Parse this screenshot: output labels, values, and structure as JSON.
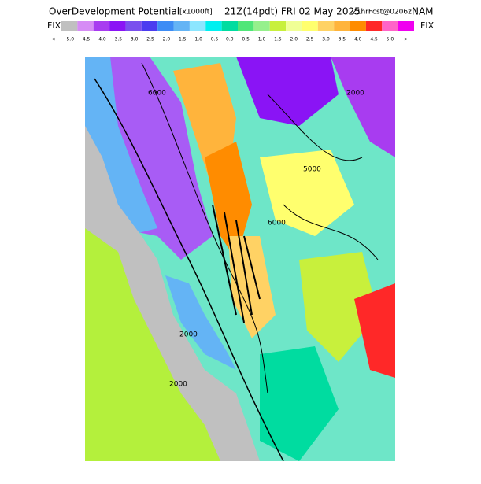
{
  "header": {
    "title": "OverDevelopment Potential",
    "units": "[x1000ft]",
    "valid": "21Z(14pdt) FRI 02 May 2025",
    "forecast": "21hrFcst@0206z",
    "model": "NAM"
  },
  "colorbar": {
    "left_tag": "FIX",
    "right_tag": "FIX",
    "labels": [
      "<",
      "-5.0",
      "-4.5",
      "-4.0",
      "-3.5",
      "-3.0",
      "-2.5",
      "-2.0",
      "-1.5",
      "-1.0",
      "-0.5",
      "0.0",
      "0.5",
      "1.0",
      "1.5",
      "2.0",
      "2.5",
      "3.0",
      "3.5",
      "4.0",
      "4.5",
      "5.0",
      ">"
    ],
    "colors": [
      "#c0c0c0",
      "#d68cf5",
      "#a83cf0",
      "#8a14f5",
      "#7a50ee",
      "#4b3cf0",
      "#3d8cf5",
      "#64b4f5",
      "#8ce6ff",
      "#00f0f0",
      "#00dca0",
      "#50e678",
      "#96f08c",
      "#c8f03c",
      "#f0ff96",
      "#ffff6e",
      "#ffd264",
      "#ffb43c",
      "#ff8c00",
      "#ff2828",
      "#ff64c8",
      "#f000f0"
    ]
  },
  "map": {
    "contour_labels": [
      "6000",
      "5000",
      "6000",
      "2000",
      "2000",
      "2000"
    ]
  }
}
